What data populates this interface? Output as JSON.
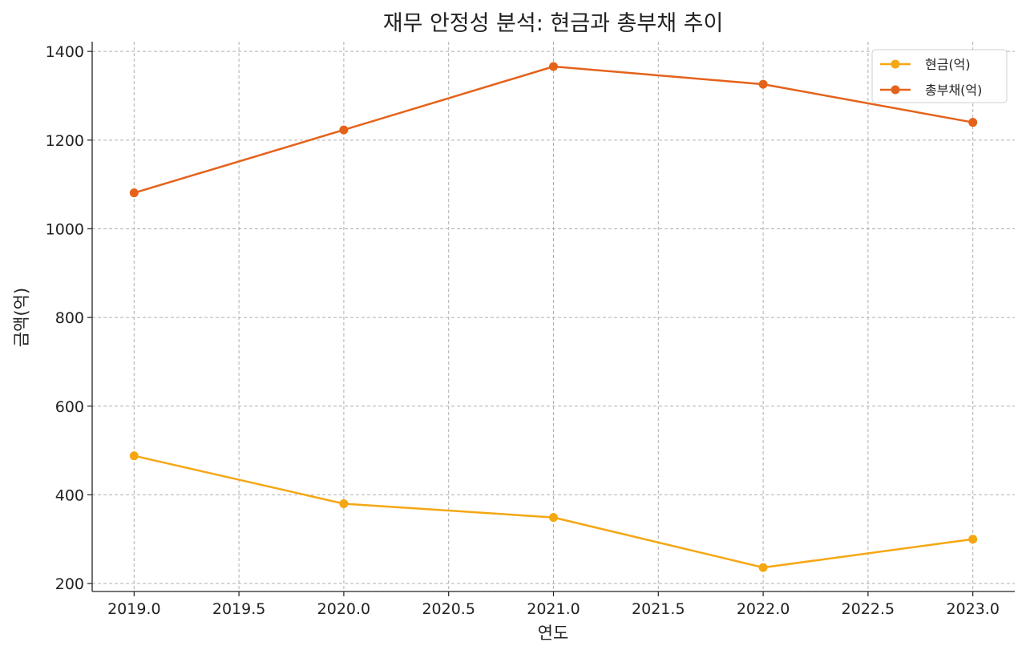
{
  "chart_data": {
    "type": "line",
    "title": "재무 안정성 분석: 현금과 총부채 추이",
    "xlabel": "연도",
    "ylabel": "금액(억)",
    "x": [
      2019,
      2020,
      2021,
      2022,
      2023
    ],
    "xlim": [
      2018.8,
      2023.2
    ],
    "ylim": [
      182,
      1422
    ],
    "xticks": [
      2019.0,
      2019.5,
      2020.0,
      2020.5,
      2021.0,
      2021.5,
      2022.0,
      2022.5,
      2023.0
    ],
    "xtick_labels": [
      "2019.0",
      "2019.5",
      "2020.0",
      "2020.5",
      "2021.0",
      "2021.5",
      "2022.0",
      "2022.5",
      "2023.0"
    ],
    "yticks": [
      200,
      400,
      600,
      800,
      1000,
      1200,
      1400
    ],
    "ytick_labels": [
      "200",
      "400",
      "600",
      "800",
      "1000",
      "1200",
      "1400"
    ],
    "grid": true,
    "legend_position": "top-right",
    "series": [
      {
        "name": "현금(억)",
        "values": [
          488,
          380,
          349,
          236,
          300
        ],
        "color": "#f5a712",
        "marker": "circle"
      },
      {
        "name": "총부채(억)",
        "values": [
          1081,
          1223,
          1366,
          1326,
          1240
        ],
        "color": "#e5621b",
        "marker": "circle"
      }
    ]
  }
}
